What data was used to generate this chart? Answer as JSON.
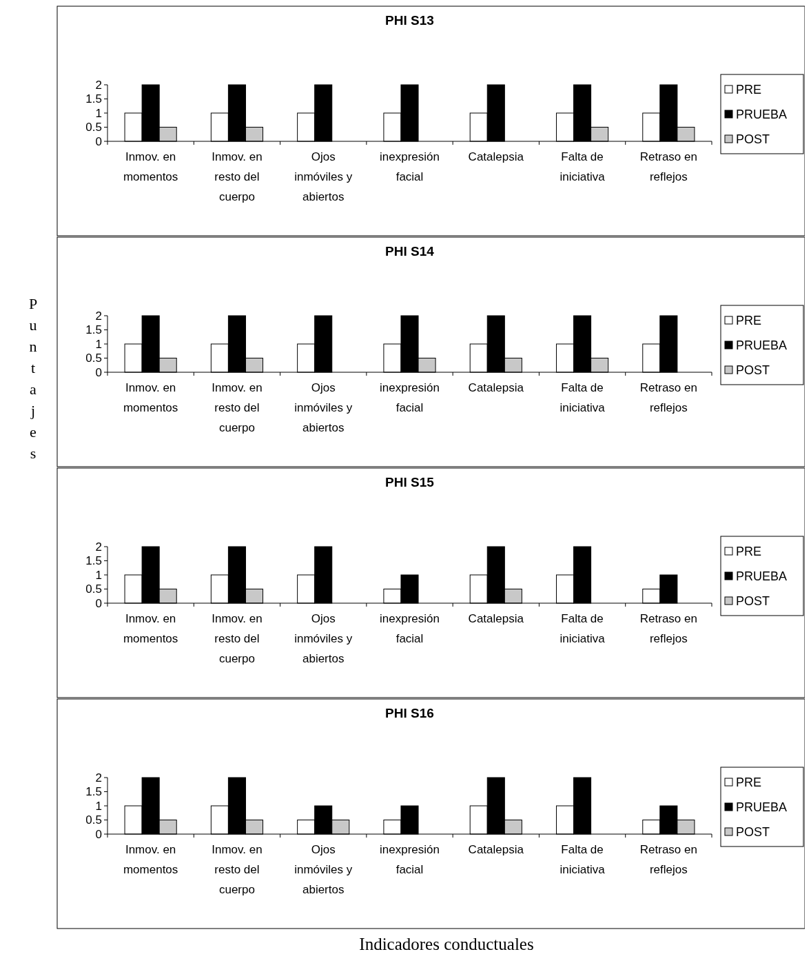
{
  "chart_data": [
    {
      "type": "bar",
      "title": "PHI S13",
      "categories": [
        "Inmov. en momentos",
        "Inmov. en resto del cuerpo",
        "Ojos inmóviles y abiertos",
        "inexpresión facial",
        "Catalepsia",
        "Falta de iniciativa",
        "Retraso en reflejos"
      ],
      "series": [
        {
          "name": "PRE",
          "color": "#ffffff",
          "values": [
            1,
            1,
            1,
            1,
            1,
            1,
            1
          ]
        },
        {
          "name": "PRUEBA",
          "color": "#000000",
          "values": [
            2,
            2,
            2,
            2,
            2,
            2,
            2
          ]
        },
        {
          "name": "POST",
          "color": "#c8c8c8",
          "values": [
            0.5,
            0.5,
            0,
            0,
            0,
            0.5,
            0.5
          ]
        }
      ],
      "ylim": [
        0,
        2
      ],
      "yticks": [
        0,
        0.5,
        1,
        1.5,
        2
      ],
      "legend": "right"
    },
    {
      "type": "bar",
      "title": "PHI S14",
      "ylabel": "Puntajes",
      "categories": [
        "Inmov. en momentos",
        "Inmov. en resto del cuerpo",
        "Ojos inmóviles y abiertos",
        "inexpresión facial",
        "Catalepsia",
        "Falta de iniciativa",
        "Retraso en reflejos"
      ],
      "series": [
        {
          "name": "PRE",
          "color": "#ffffff",
          "values": [
            1,
            1,
            1,
            1,
            1,
            1,
            1
          ]
        },
        {
          "name": "PRUEBA",
          "color": "#000000",
          "values": [
            2,
            2,
            2,
            2,
            2,
            2,
            2
          ]
        },
        {
          "name": "POST",
          "color": "#c8c8c8",
          "values": [
            0.5,
            0.5,
            0,
            0.5,
            0.5,
            0.5,
            0
          ]
        }
      ],
      "ylim": [
        0,
        2
      ],
      "yticks": [
        0,
        0.5,
        1,
        1.5,
        2
      ],
      "legend": "right"
    },
    {
      "type": "bar",
      "title": "PHI S15",
      "categories": [
        "Inmov. en momentos",
        "Inmov. en resto del cuerpo",
        "Ojos inmóviles y abiertos",
        "inexpresión facial",
        "Catalepsia",
        "Falta de iniciativa",
        "Retraso en reflejos"
      ],
      "series": [
        {
          "name": "PRE",
          "color": "#ffffff",
          "values": [
            1,
            1,
            1,
            0.5,
            1,
            1,
            0.5
          ]
        },
        {
          "name": "PRUEBA",
          "color": "#000000",
          "values": [
            2,
            2,
            2,
            1,
            2,
            2,
            1
          ]
        },
        {
          "name": "POST",
          "color": "#c8c8c8",
          "values": [
            0.5,
            0.5,
            0,
            0,
            0.5,
            0,
            0
          ]
        }
      ],
      "ylim": [
        0,
        2
      ],
      "yticks": [
        0,
        0.5,
        1,
        1.5,
        2
      ],
      "legend": "right"
    },
    {
      "type": "bar",
      "title": "PHI S16",
      "xlabel": "Indicadores conductuales",
      "categories": [
        "Inmov. en momentos",
        "Inmov. en resto del cuerpo",
        "Ojos inmóviles y abiertos",
        "inexpresión facial",
        "Catalepsia",
        "Falta de iniciativa",
        "Retraso en reflejos"
      ],
      "series": [
        {
          "name": "PRE",
          "color": "#ffffff",
          "values": [
            1,
            1,
            0.5,
            0.5,
            1,
            1,
            0.5
          ]
        },
        {
          "name": "PRUEBA",
          "color": "#000000",
          "values": [
            2,
            2,
            1,
            1,
            2,
            2,
            1
          ]
        },
        {
          "name": "POST",
          "color": "#c8c8c8",
          "values": [
            0.5,
            0.5,
            0.5,
            0,
            0.5,
            0,
            0.5
          ]
        }
      ],
      "ylim": [
        0,
        2
      ],
      "yticks": [
        0,
        0.5,
        1,
        1.5,
        2
      ],
      "legend": "right"
    }
  ]
}
